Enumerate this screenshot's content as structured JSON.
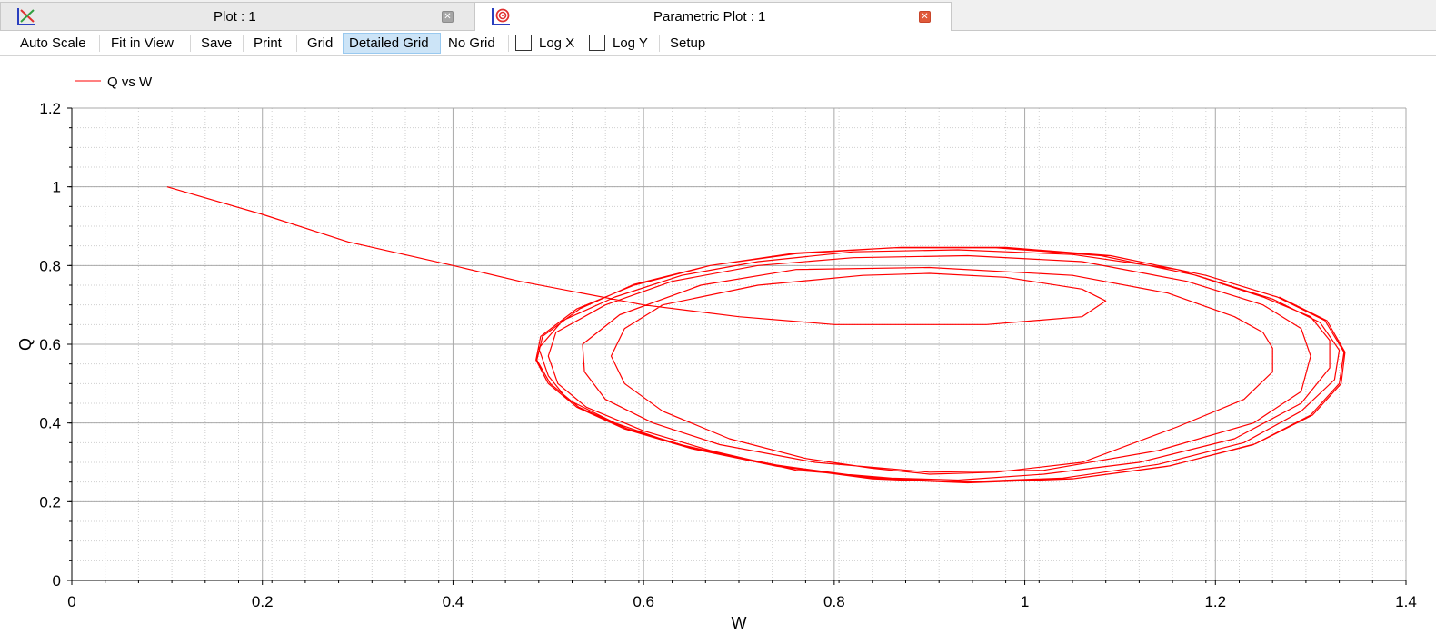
{
  "tabs": [
    {
      "label": "Plot : 1",
      "icon": "line-plot-icon",
      "active": false
    },
    {
      "label": "Parametric Plot : 1",
      "icon": "parametric-plot-icon",
      "active": true
    }
  ],
  "toolbar": {
    "auto_scale": "Auto Scale",
    "fit_in_view": "Fit in View",
    "save": "Save",
    "print": "Print",
    "grid": "Grid",
    "detailed_grid": "Detailed Grid",
    "no_grid": "No Grid",
    "log_x": "Log X",
    "log_y": "Log Y",
    "setup": "Setup",
    "log_x_checked": false,
    "log_y_checked": false,
    "selected_grid_mode": "Detailed Grid"
  },
  "chart_data": {
    "type": "line",
    "title": "",
    "xlabel": "W",
    "ylabel": "Q",
    "xlim": [
      0,
      1.4
    ],
    "ylim": [
      0,
      1.2
    ],
    "xticks": [
      "0",
      "0.2",
      "0.4",
      "0.6",
      "0.8",
      "1",
      "1.2",
      "1.4"
    ],
    "yticks": [
      "0",
      "0.2",
      "0.4",
      "0.6",
      "0.8",
      "1",
      "1.2"
    ],
    "grid": "detailed",
    "legend_position": "top-left",
    "series": [
      {
        "name": "Q vs W",
        "color": "#ff0000",
        "points": [
          [
            0.1,
            1.0
          ],
          [
            0.2,
            0.93
          ],
          [
            0.29,
            0.86
          ],
          [
            0.4,
            0.8
          ],
          [
            0.47,
            0.76
          ],
          [
            0.6,
            0.7
          ],
          [
            0.7,
            0.67
          ],
          [
            0.8,
            0.65
          ],
          [
            0.9,
            0.65
          ],
          [
            0.96,
            0.65
          ],
          [
            1.06,
            0.67
          ],
          [
            1.085,
            0.71
          ],
          [
            1.06,
            0.74
          ],
          [
            0.98,
            0.77
          ],
          [
            0.9,
            0.78
          ],
          [
            0.83,
            0.775
          ],
          [
            0.72,
            0.75
          ],
          [
            0.62,
            0.7
          ],
          [
            0.58,
            0.64
          ],
          [
            0.566,
            0.57
          ],
          [
            0.58,
            0.5
          ],
          [
            0.62,
            0.43
          ],
          [
            0.69,
            0.36
          ],
          [
            0.77,
            0.31
          ],
          [
            0.84,
            0.285
          ],
          [
            0.9,
            0.27
          ],
          [
            0.97,
            0.275
          ],
          [
            1.06,
            0.3
          ],
          [
            1.16,
            0.39
          ],
          [
            1.23,
            0.46
          ],
          [
            1.26,
            0.53
          ],
          [
            1.26,
            0.59
          ],
          [
            1.25,
            0.63
          ],
          [
            1.22,
            0.67
          ],
          [
            1.15,
            0.73
          ],
          [
            1.05,
            0.775
          ],
          [
            0.9,
            0.795
          ],
          [
            0.76,
            0.79
          ],
          [
            0.66,
            0.75
          ],
          [
            0.575,
            0.675
          ],
          [
            0.536,
            0.6
          ],
          [
            0.538,
            0.53
          ],
          [
            0.56,
            0.46
          ],
          [
            0.61,
            0.4
          ],
          [
            0.68,
            0.345
          ],
          [
            0.78,
            0.3
          ],
          [
            0.9,
            0.275
          ],
          [
            1.02,
            0.28
          ],
          [
            1.14,
            0.33
          ],
          [
            1.24,
            0.4
          ],
          [
            1.29,
            0.48
          ],
          [
            1.3,
            0.57
          ],
          [
            1.29,
            0.64
          ],
          [
            1.25,
            0.7
          ],
          [
            1.17,
            0.76
          ],
          [
            1.06,
            0.81
          ],
          [
            0.94,
            0.825
          ],
          [
            0.82,
            0.82
          ],
          [
            0.72,
            0.8
          ],
          [
            0.63,
            0.76
          ],
          [
            0.56,
            0.7
          ],
          [
            0.508,
            0.63
          ],
          [
            0.5,
            0.57
          ],
          [
            0.51,
            0.5
          ],
          [
            0.54,
            0.44
          ],
          [
            0.6,
            0.38
          ],
          [
            0.67,
            0.33
          ],
          [
            0.76,
            0.28
          ],
          [
            0.86,
            0.26
          ],
          [
            0.93,
            0.255
          ],
          [
            1.02,
            0.27
          ],
          [
            1.12,
            0.3
          ],
          [
            1.22,
            0.36
          ],
          [
            1.29,
            0.45
          ],
          [
            1.32,
            0.54
          ],
          [
            1.32,
            0.61
          ],
          [
            1.3,
            0.67
          ],
          [
            1.25,
            0.72
          ],
          [
            1.16,
            0.79
          ],
          [
            1.05,
            0.828
          ],
          [
            0.93,
            0.84
          ],
          [
            0.82,
            0.835
          ],
          [
            0.72,
            0.81
          ],
          [
            0.64,
            0.775
          ],
          [
            0.57,
            0.72
          ],
          [
            0.515,
            0.66
          ],
          [
            0.49,
            0.59
          ],
          [
            0.5,
            0.52
          ],
          [
            0.52,
            0.46
          ],
          [
            0.57,
            0.4
          ],
          [
            0.63,
            0.35
          ],
          [
            0.72,
            0.3
          ],
          [
            0.82,
            0.265
          ],
          [
            0.93,
            0.25
          ],
          [
            1.04,
            0.26
          ],
          [
            1.14,
            0.295
          ],
          [
            1.23,
            0.35
          ],
          [
            1.29,
            0.43
          ],
          [
            1.325,
            0.51
          ],
          [
            1.33,
            0.585
          ],
          [
            1.31,
            0.655
          ],
          [
            1.26,
            0.715
          ],
          [
            1.18,
            0.775
          ],
          [
            1.08,
            0.825
          ],
          [
            0.97,
            0.845
          ],
          [
            0.86,
            0.845
          ],
          [
            0.76,
            0.83
          ],
          [
            0.67,
            0.8
          ],
          [
            0.59,
            0.75
          ],
          [
            0.53,
            0.69
          ],
          [
            0.492,
            0.62
          ],
          [
            0.487,
            0.56
          ],
          [
            0.5,
            0.5
          ],
          [
            0.53,
            0.44
          ],
          [
            0.58,
            0.385
          ],
          [
            0.65,
            0.335
          ],
          [
            0.74,
            0.29
          ],
          [
            0.84,
            0.258
          ],
          [
            0.94,
            0.248
          ],
          [
            1.05,
            0.258
          ],
          [
            1.15,
            0.29
          ],
          [
            1.24,
            0.345
          ],
          [
            1.3,
            0.42
          ],
          [
            1.33,
            0.5
          ],
          [
            1.335,
            0.58
          ],
          [
            1.315,
            0.66
          ],
          [
            1.265,
            0.72
          ],
          [
            1.19,
            0.775
          ],
          [
            1.09,
            0.825
          ],
          [
            0.98,
            0.846
          ],
          [
            0.87,
            0.846
          ],
          [
            0.76,
            0.832
          ],
          [
            0.67,
            0.8
          ],
          [
            0.59,
            0.752
          ],
          [
            0.533,
            0.69
          ],
          [
            0.494,
            0.62
          ],
          [
            0.488,
            0.56
          ],
          [
            0.502,
            0.5
          ],
          [
            0.532,
            0.44
          ],
          [
            0.582,
            0.386
          ],
          [
            0.652,
            0.336
          ],
          [
            0.742,
            0.292
          ],
          [
            0.842,
            0.26
          ],
          [
            0.942,
            0.249
          ],
          [
            1.052,
            0.259
          ],
          [
            1.152,
            0.291
          ],
          [
            1.242,
            0.347
          ],
          [
            1.302,
            0.42
          ],
          [
            1.332,
            0.5
          ],
          [
            1.336,
            0.58
          ],
          [
            1.317,
            0.66
          ],
          [
            1.267,
            0.72
          ]
        ]
      }
    ]
  }
}
